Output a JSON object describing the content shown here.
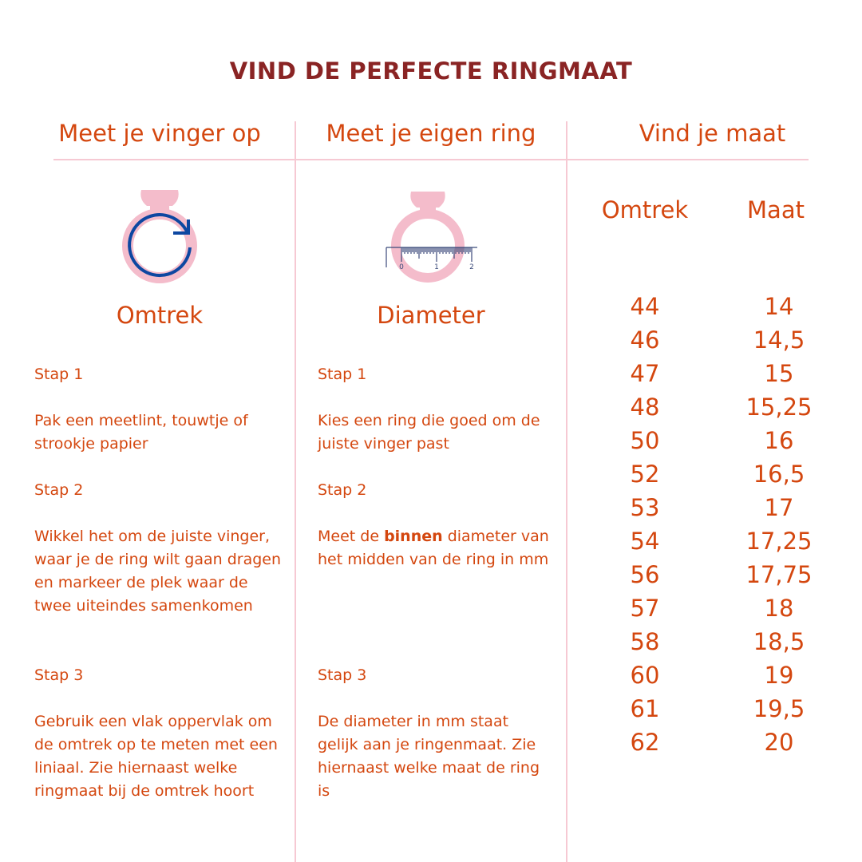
{
  "title": "VIND DE PERFECTE RINGMAAT",
  "colors": {
    "title": "#8a2424",
    "text": "#d4470f",
    "divider": "#f6c9d3",
    "ring": "#f4bccb",
    "arrow": "#0d47a1"
  },
  "columns": {
    "finger": {
      "heading": "Meet je vinger op",
      "icon": "ring-circumference-icon",
      "label": "Omtrek",
      "steps": [
        {
          "title": "Stap 1",
          "text": "Pak een meetlint, touwtje of strookje papier"
        },
        {
          "title": "Stap 2",
          "text": "Wikkel het om de juiste vinger, waar je de ring wilt gaan dragen en markeer de plek waar de twee uiteindes samenkomen"
        },
        {
          "title": "Stap 3",
          "text": "Gebruik een vlak oppervlak om de omtrek op te meten met een liniaal. Zie hiernaast welke ringmaat bij de omtrek hoort"
        }
      ]
    },
    "ring": {
      "heading": "Meet je eigen ring",
      "icon": "ring-ruler-icon",
      "ruler_labels": [
        "0",
        "1",
        "2"
      ],
      "label": "Diameter",
      "steps": [
        {
          "title": "Stap 1",
          "text": "Kies een ring die goed om de juiste vinger past"
        },
        {
          "title": "Stap 2",
          "text_before": "Meet de ",
          "text_bold": "binnen",
          "text_after": " diameter van het midden van de ring in mm"
        },
        {
          "title": "Stap 3",
          "text": "De diameter in mm staat gelijk aan je ringenmaat. Zie hiernaast welke maat de ring is"
        }
      ]
    },
    "size": {
      "heading": "Vind je maat",
      "table": {
        "headers": [
          "Omtrek",
          "Maat"
        ],
        "omtrek": [
          "44",
          "46",
          "47",
          "48",
          "50",
          "52",
          "53",
          "54",
          "56",
          "57",
          "58",
          "60",
          "61",
          "62"
        ],
        "maat": [
          "14",
          "14,5",
          "15",
          "15,25",
          "16",
          "16,5",
          "17",
          "17,25",
          "17,75",
          "18",
          "18,5",
          "19",
          "19,5",
          "20"
        ]
      }
    }
  }
}
